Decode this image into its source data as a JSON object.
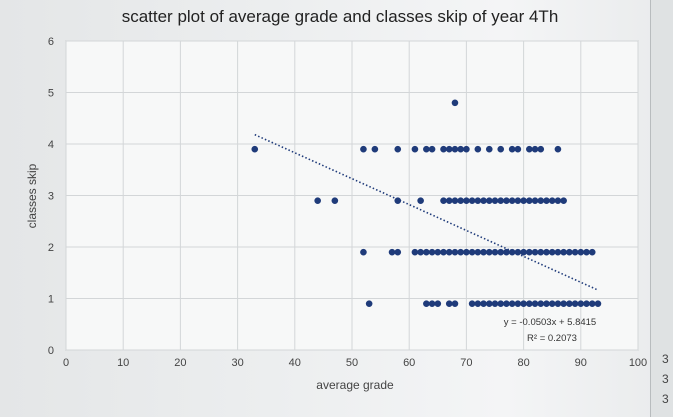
{
  "chart_data": {
    "type": "scatter",
    "title": "scatter plot of average grade and classes skip of year 4Th",
    "xlabel": "average grade",
    "ylabel": "classes skip",
    "xlim": [
      0,
      100
    ],
    "ylim": [
      0,
      6
    ],
    "x_ticks": [
      "0",
      "10",
      "20",
      "30",
      "40",
      "50",
      "60",
      "70",
      "80",
      "90",
      "100"
    ],
    "y_ticks": [
      "0",
      "1",
      "2",
      "3",
      "4",
      "5",
      "6"
    ],
    "grid": true,
    "marker_color": "#1f3b7a",
    "trendline": {
      "slope": -0.0503,
      "intercept": 5.8415,
      "x_range": [
        33,
        93
      ],
      "equation": "y = -0.0503x + 5.8415",
      "r_squared": "R² = 0.2073",
      "color": "#1f3b7a",
      "style": "dotted"
    },
    "points": [
      {
        "x": 68,
        "y": 4.8
      },
      {
        "x": 33,
        "y": 3.9
      },
      {
        "x": 52,
        "y": 3.9
      },
      {
        "x": 54,
        "y": 3.9
      },
      {
        "x": 58,
        "y": 3.9
      },
      {
        "x": 61,
        "y": 3.9
      },
      {
        "x": 63,
        "y": 3.9
      },
      {
        "x": 64,
        "y": 3.9
      },
      {
        "x": 66,
        "y": 3.9
      },
      {
        "x": 67,
        "y": 3.9
      },
      {
        "x": 68,
        "y": 3.9
      },
      {
        "x": 69,
        "y": 3.9
      },
      {
        "x": 70,
        "y": 3.9
      },
      {
        "x": 72,
        "y": 3.9
      },
      {
        "x": 74,
        "y": 3.9
      },
      {
        "x": 76,
        "y": 3.9
      },
      {
        "x": 78,
        "y": 3.9
      },
      {
        "x": 79,
        "y": 3.9
      },
      {
        "x": 81,
        "y": 3.9
      },
      {
        "x": 82,
        "y": 3.9
      },
      {
        "x": 83,
        "y": 3.9
      },
      {
        "x": 86,
        "y": 3.9
      },
      {
        "x": 44,
        "y": 2.9
      },
      {
        "x": 47,
        "y": 2.9
      },
      {
        "x": 58,
        "y": 2.9
      },
      {
        "x": 62,
        "y": 2.9
      },
      {
        "x": 66,
        "y": 2.9
      },
      {
        "x": 67,
        "y": 2.9
      },
      {
        "x": 68,
        "y": 2.9
      },
      {
        "x": 69,
        "y": 2.9
      },
      {
        "x": 70,
        "y": 2.9
      },
      {
        "x": 71,
        "y": 2.9
      },
      {
        "x": 72,
        "y": 2.9
      },
      {
        "x": 73,
        "y": 2.9
      },
      {
        "x": 74,
        "y": 2.9
      },
      {
        "x": 75,
        "y": 2.9
      },
      {
        "x": 76,
        "y": 2.9
      },
      {
        "x": 77,
        "y": 2.9
      },
      {
        "x": 78,
        "y": 2.9
      },
      {
        "x": 79,
        "y": 2.9
      },
      {
        "x": 80,
        "y": 2.9
      },
      {
        "x": 81,
        "y": 2.9
      },
      {
        "x": 82,
        "y": 2.9
      },
      {
        "x": 83,
        "y": 2.9
      },
      {
        "x": 84,
        "y": 2.9
      },
      {
        "x": 85,
        "y": 2.9
      },
      {
        "x": 86,
        "y": 2.9
      },
      {
        "x": 87,
        "y": 2.9
      },
      {
        "x": 52,
        "y": 1.9
      },
      {
        "x": 57,
        "y": 1.9
      },
      {
        "x": 58,
        "y": 1.9
      },
      {
        "x": 61,
        "y": 1.9
      },
      {
        "x": 62,
        "y": 1.9
      },
      {
        "x": 63,
        "y": 1.9
      },
      {
        "x": 64,
        "y": 1.9
      },
      {
        "x": 65,
        "y": 1.9
      },
      {
        "x": 66,
        "y": 1.9
      },
      {
        "x": 67,
        "y": 1.9
      },
      {
        "x": 68,
        "y": 1.9
      },
      {
        "x": 69,
        "y": 1.9
      },
      {
        "x": 70,
        "y": 1.9
      },
      {
        "x": 71,
        "y": 1.9
      },
      {
        "x": 72,
        "y": 1.9
      },
      {
        "x": 73,
        "y": 1.9
      },
      {
        "x": 74,
        "y": 1.9
      },
      {
        "x": 75,
        "y": 1.9
      },
      {
        "x": 76,
        "y": 1.9
      },
      {
        "x": 77,
        "y": 1.9
      },
      {
        "x": 78,
        "y": 1.9
      },
      {
        "x": 79,
        "y": 1.9
      },
      {
        "x": 80,
        "y": 1.9
      },
      {
        "x": 81,
        "y": 1.9
      },
      {
        "x": 82,
        "y": 1.9
      },
      {
        "x": 83,
        "y": 1.9
      },
      {
        "x": 84,
        "y": 1.9
      },
      {
        "x": 85,
        "y": 1.9
      },
      {
        "x": 86,
        "y": 1.9
      },
      {
        "x": 87,
        "y": 1.9
      },
      {
        "x": 88,
        "y": 1.9
      },
      {
        "x": 89,
        "y": 1.9
      },
      {
        "x": 90,
        "y": 1.9
      },
      {
        "x": 91,
        "y": 1.9
      },
      {
        "x": 92,
        "y": 1.9
      },
      {
        "x": 53,
        "y": 0.9
      },
      {
        "x": 63,
        "y": 0.9
      },
      {
        "x": 64,
        "y": 0.9
      },
      {
        "x": 65,
        "y": 0.9
      },
      {
        "x": 67,
        "y": 0.9
      },
      {
        "x": 68,
        "y": 0.9
      },
      {
        "x": 71,
        "y": 0.9
      },
      {
        "x": 72,
        "y": 0.9
      },
      {
        "x": 73,
        "y": 0.9
      },
      {
        "x": 74,
        "y": 0.9
      },
      {
        "x": 75,
        "y": 0.9
      },
      {
        "x": 76,
        "y": 0.9
      },
      {
        "x": 77,
        "y": 0.9
      },
      {
        "x": 78,
        "y": 0.9
      },
      {
        "x": 79,
        "y": 0.9
      },
      {
        "x": 80,
        "y": 0.9
      },
      {
        "x": 81,
        "y": 0.9
      },
      {
        "x": 82,
        "y": 0.9
      },
      {
        "x": 83,
        "y": 0.9
      },
      {
        "x": 84,
        "y": 0.9
      },
      {
        "x": 85,
        "y": 0.9
      },
      {
        "x": 86,
        "y": 0.9
      },
      {
        "x": 87,
        "y": 0.9
      },
      {
        "x": 88,
        "y": 0.9
      },
      {
        "x": 89,
        "y": 0.9
      },
      {
        "x": 90,
        "y": 0.9
      },
      {
        "x": 91,
        "y": 0.9
      },
      {
        "x": 92,
        "y": 0.9
      },
      {
        "x": 93,
        "y": 0.9
      }
    ]
  },
  "sheet_edge_labels": [
    "3",
    "3",
    "3"
  ]
}
